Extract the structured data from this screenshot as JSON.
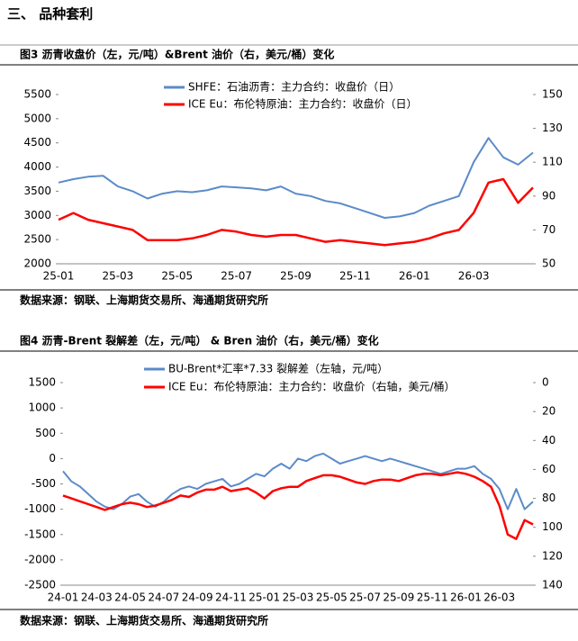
{
  "heading": "三、 品种套利",
  "chart_data": [
    {
      "type": "line",
      "title": "图3  沥青收盘价（左，元/吨）&Brent 油价（右，美元/桶）变化",
      "source": "数据来源：钢联、上海期货交易所、海通期货研究所",
      "categories": [
        "25-01",
        null,
        null,
        null,
        "25-03",
        null,
        null,
        null,
        "25-05",
        null,
        null,
        null,
        "25-07",
        null,
        null,
        null,
        "25-09",
        null,
        null,
        null,
        "25-11",
        null,
        null,
        null,
        "26-01",
        null,
        null,
        null,
        "26-03",
        null,
        null,
        null,
        null
      ],
      "series": [
        {
          "name": "SHFE：石油沥青：主力合约：收盘价（日）",
          "color": "#5b8bc9",
          "values": [
            3680,
            3750,
            3800,
            3820,
            3600,
            3500,
            3350,
            3450,
            3500,
            3480,
            3520,
            3600,
            3580,
            3560,
            3520,
            3600,
            3450,
            3400,
            3300,
            3250,
            3150,
            3050,
            2950,
            2980,
            3050,
            3200,
            3300,
            3400,
            4100,
            4600,
            4200,
            4050,
            4300
          ]
        },
        {
          "name": "ICE Eu：布伦特原油：主力合约：收盘价（日）",
          "color": "#ff0000",
          "axis": "y2",
          "values": [
            76,
            80,
            76,
            74,
            72,
            70,
            64,
            64,
            64,
            65,
            67,
            70,
            69,
            67,
            66,
            67,
            67,
            65,
            63,
            64,
            63,
            62,
            61,
            62,
            63,
            65,
            68,
            70,
            80,
            98,
            100,
            86,
            95
          ]
        }
      ],
      "ylim": [
        2000,
        5500
      ],
      "yticks": [
        2000,
        2500,
        3000,
        3500,
        4000,
        4500,
        5000,
        5500
      ],
      "y2lim": [
        50,
        150
      ],
      "y2ticks": [
        50,
        70,
        90,
        110,
        130,
        150
      ],
      "y2_inverted": false
    },
    {
      "type": "line",
      "title": "图4  沥青-Brent 裂解差（左，元/吨） & Bren 油价（右，美元/桶）变化",
      "source": "数据来源：钢联、上海期货交易所、海通期货研究所",
      "categories": [
        "24-01",
        null,
        null,
        null,
        "24-03",
        null,
        null,
        null,
        "24-05",
        null,
        null,
        null,
        "24-07",
        null,
        null,
        null,
        "24-09",
        null,
        null,
        null,
        "24-11",
        null,
        null,
        null,
        "25-01",
        null,
        null,
        null,
        "25-03",
        null,
        null,
        null,
        "25-05",
        null,
        null,
        null,
        "25-07",
        null,
        null,
        null,
        "25-09",
        null,
        null,
        null,
        "25-11",
        null,
        null,
        null,
        "26-01",
        null,
        null,
        null,
        "26-03",
        null,
        null,
        null,
        null
      ],
      "series": [
        {
          "name": "BU-Brent*汇率*7.33 裂解差（左轴，元/吨）",
          "color": "#5b8bc9",
          "values": [
            -250,
            -450,
            -550,
            -700,
            -850,
            -950,
            -1000,
            -900,
            -750,
            -700,
            -850,
            -950,
            -850,
            -700,
            -600,
            -550,
            -600,
            -500,
            -450,
            -400,
            -550,
            -500,
            -400,
            -300,
            -350,
            -200,
            -100,
            -200,
            0,
            -50,
            50,
            100,
            0,
            -100,
            -50,
            0,
            50,
            0,
            -50,
            0,
            -50,
            -100,
            -150,
            -200,
            -250,
            -300,
            -250,
            -200,
            -200,
            -150,
            -300,
            -400,
            -600,
            -1000,
            -600,
            -1000,
            -850
          ]
        },
        {
          "name": "ICE Eu：布伦特原油：主力合约：收盘价（右轴，美元/桶）",
          "color": "#ff0000",
          "axis": "y2",
          "values": [
            78,
            80,
            82,
            84,
            86,
            88,
            86,
            84,
            83,
            84,
            86,
            85,
            83,
            81,
            78,
            79,
            76,
            74,
            74,
            72,
            75,
            74,
            73,
            76,
            80,
            75,
            73,
            72,
            72,
            68,
            66,
            64,
            64,
            65,
            67,
            69,
            70,
            68,
            67,
            67,
            68,
            66,
            64,
            63,
            63,
            64,
            63,
            62,
            63,
            65,
            68,
            72,
            85,
            105,
            108,
            95,
            98
          ]
        }
      ],
      "ylim": [
        -2500,
        1500
      ],
      "yticks": [
        -2500,
        -2000,
        -1500,
        -1000,
        -500,
        0,
        500,
        1000,
        1500
      ],
      "y2lim": [
        0,
        140
      ],
      "y2ticks": [
        0,
        20,
        40,
        60,
        80,
        100,
        120,
        140
      ],
      "y2_inverted": true
    }
  ]
}
